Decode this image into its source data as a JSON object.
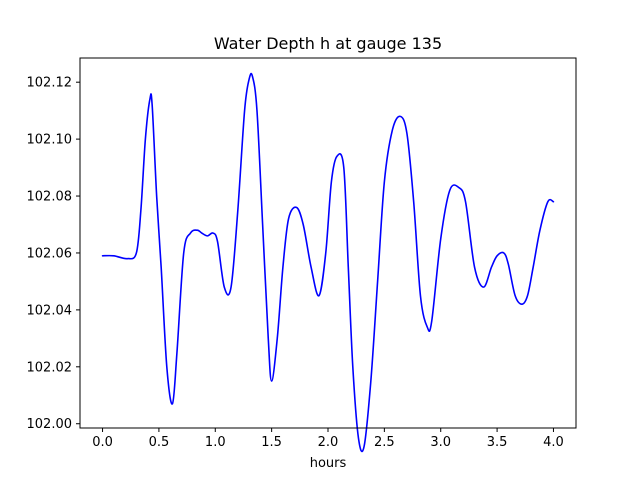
{
  "chart_data": {
    "type": "line",
    "title": "Water Depth h at gauge 135",
    "xlabel": "hours",
    "ylabel": "",
    "xlim": [
      -0.2,
      4.2
    ],
    "ylim": [
      101.9985,
      102.1285
    ],
    "xticks": [
      0.0,
      0.5,
      1.0,
      1.5,
      2.0,
      2.5,
      3.0,
      3.5,
      4.0
    ],
    "xtick_labels": [
      "0.0",
      "0.5",
      "1.0",
      "1.5",
      "2.0",
      "2.5",
      "3.0",
      "3.5",
      "4.0"
    ],
    "yticks": [
      102.0,
      102.02,
      102.04,
      102.06,
      102.08,
      102.1,
      102.12
    ],
    "ytick_labels": [
      "102.00",
      "102.02",
      "102.04",
      "102.06",
      "102.08",
      "102.10",
      "102.12"
    ],
    "grid": false,
    "legend": "none",
    "series": [
      {
        "color": "#0000ff",
        "x": [
          0.0,
          0.1,
          0.22,
          0.3,
          0.34,
          0.38,
          0.42,
          0.44,
          0.48,
          0.52,
          0.57,
          0.62,
          0.66,
          0.72,
          0.78,
          0.84,
          0.88,
          0.93,
          0.98,
          1.02,
          1.08,
          1.14,
          1.2,
          1.26,
          1.3,
          1.33,
          1.37,
          1.42,
          1.47,
          1.5,
          1.55,
          1.6,
          1.65,
          1.72,
          1.78,
          1.85,
          1.92,
          1.98,
          2.03,
          2.08,
          2.14,
          2.18,
          2.22,
          2.27,
          2.32,
          2.38,
          2.44,
          2.5,
          2.57,
          2.64,
          2.7,
          2.76,
          2.82,
          2.88,
          2.92,
          3.0,
          3.08,
          3.16,
          3.22,
          3.3,
          3.38,
          3.45,
          3.5,
          3.56,
          3.6,
          3.66,
          3.72,
          3.77,
          3.82,
          3.88,
          3.95,
          4.0
        ],
        "y": [
          102.059,
          102.059,
          102.058,
          102.06,
          102.075,
          102.1,
          102.114,
          102.112,
          102.08,
          102.055,
          102.02,
          102.007,
          102.025,
          102.06,
          102.067,
          102.068,
          102.067,
          102.066,
          102.067,
          102.064,
          102.048,
          102.048,
          102.075,
          102.11,
          102.121,
          102.122,
          102.11,
          102.07,
          102.03,
          102.015,
          102.03,
          102.055,
          102.072,
          102.076,
          102.07,
          102.055,
          102.045,
          102.06,
          102.085,
          102.094,
          102.09,
          102.055,
          102.02,
          101.995,
          101.992,
          102.015,
          102.05,
          102.085,
          102.103,
          102.108,
          102.102,
          102.078,
          102.045,
          102.034,
          102.036,
          102.065,
          102.082,
          102.083,
          102.078,
          102.055,
          102.048,
          102.055,
          102.059,
          102.06,
          102.056,
          102.045,
          102.042,
          102.045,
          102.055,
          102.068,
          102.078,
          102.078
        ]
      }
    ]
  }
}
